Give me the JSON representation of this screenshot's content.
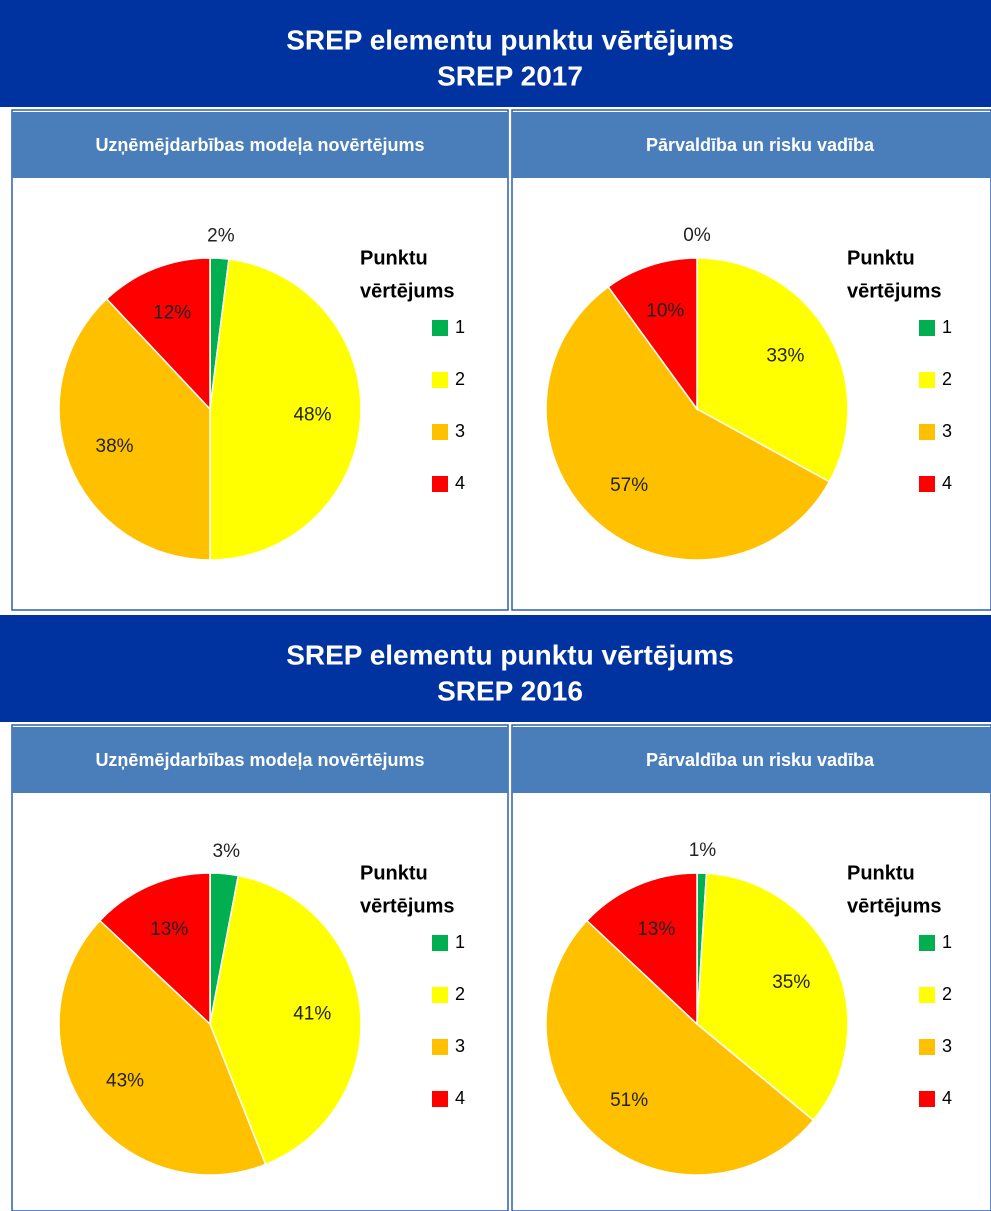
{
  "sections": [
    {
      "title": [
        "SREP elementu punktu vērtējums",
        "SREP 2017"
      ]
    },
    {
      "title": [
        "SREP elementu punktu vērtējums",
        "SREP 2016"
      ]
    }
  ],
  "chart_data": [
    {
      "type": "pie",
      "title": "Uzņēmējdarbības modeļa novērtējums",
      "legend_title": [
        "Punktu",
        "vērtējums"
      ],
      "categories": [
        "1",
        "2",
        "3",
        "4"
      ],
      "colors": [
        "#00b050",
        "#ffff00",
        "#ffc000",
        "#ff0000"
      ],
      "values": [
        2,
        48,
        38,
        12
      ],
      "value_labels": [
        "2%",
        "48%",
        "38%",
        "12%"
      ]
    },
    {
      "type": "pie",
      "title": "Pārvaldība un risku vadība",
      "legend_title": [
        "Punktu",
        "vērtējums"
      ],
      "categories": [
        "1",
        "2",
        "3",
        "4"
      ],
      "colors": [
        "#00b050",
        "#ffff00",
        "#ffc000",
        "#ff0000"
      ],
      "values": [
        0,
        33,
        57,
        10
      ],
      "value_labels": [
        "0%",
        "33%",
        "57%",
        "10%"
      ]
    },
    {
      "type": "pie",
      "title": "Uzņēmējdarbības modeļa novērtējums",
      "legend_title": [
        "Punktu",
        "vērtējums"
      ],
      "categories": [
        "1",
        "2",
        "3",
        "4"
      ],
      "colors": [
        "#00b050",
        "#ffff00",
        "#ffc000",
        "#ff0000"
      ],
      "values": [
        3,
        41,
        43,
        13
      ],
      "value_labels": [
        "3%",
        "41%",
        "43%",
        "13%"
      ]
    },
    {
      "type": "pie",
      "title": "Pārvaldība un risku vadība",
      "legend_title": [
        "Punktu",
        "vērtējums"
      ],
      "categories": [
        "1",
        "2",
        "3",
        "4"
      ],
      "colors": [
        "#00b050",
        "#ffff00",
        "#ffc000",
        "#ff0000"
      ],
      "values": [
        1,
        35,
        51,
        13
      ],
      "value_labels": [
        "1%",
        "35%",
        "51%",
        "13%"
      ]
    }
  ]
}
